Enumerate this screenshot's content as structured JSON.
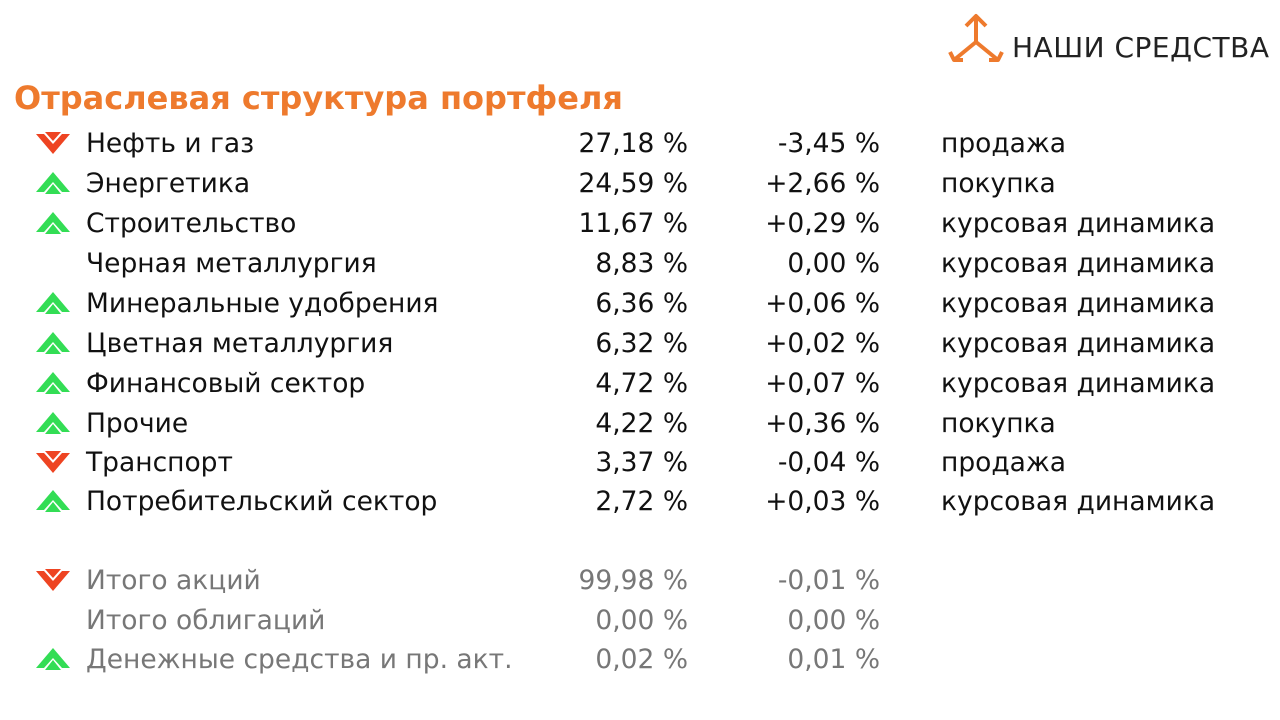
{
  "brand": {
    "name": "НАШИ СРЕДСТВА",
    "accent": "#EE7A2D"
  },
  "title": "Отраслевая структура портфеля",
  "colors": {
    "up": "#33DD55",
    "down": "#EE4422",
    "total_text": "#777777"
  },
  "sectors": [
    {
      "name": "Нефть и газ",
      "share": "27,18 %",
      "change": "-3,45 %",
      "action": "продажа",
      "trend": "down"
    },
    {
      "name": "Энергетика",
      "share": "24,59 %",
      "change": "+2,66 %",
      "action": "покупка",
      "trend": "up"
    },
    {
      "name": "Строительство",
      "share": "11,67 %",
      "change": "+0,29 %",
      "action": "курсовая динамика",
      "trend": "up"
    },
    {
      "name": "Черная металлургия",
      "share": "8,83 %",
      "change": "0,00 %",
      "action": "курсовая динамика",
      "trend": "none"
    },
    {
      "name": "Минеральные удобрения",
      "share": "6,36 %",
      "change": "+0,06 %",
      "action": "курсовая динамика",
      "trend": "up"
    },
    {
      "name": "Цветная металлургия",
      "share": "6,32 %",
      "change": "+0,02 %",
      "action": "курсовая динамика",
      "trend": "up"
    },
    {
      "name": "Финансовый сектор",
      "share": "4,72 %",
      "change": "+0,07 %",
      "action": "курсовая динамика",
      "trend": "up"
    },
    {
      "name": "Прочие",
      "share": "4,22 %",
      "change": "+0,36 %",
      "action": "покупка",
      "trend": "up"
    },
    {
      "name": "Транспорт",
      "share": "3,37 %",
      "change": "-0,04 %",
      "action": "продажа",
      "trend": "down"
    },
    {
      "name": "Потребительский сектор",
      "share": "2,72 %",
      "change": "+0,03 %",
      "action": "курсовая динамика",
      "trend": "up"
    }
  ],
  "totals": [
    {
      "name": "Итого акций",
      "share": "99,98 %",
      "change": "-0,01 %",
      "trend": "down"
    },
    {
      "name": "Итого облигаций",
      "share": "0,00 %",
      "change": "0,00 %",
      "trend": "none"
    },
    {
      "name": "Денежные средства и пр. акт.",
      "share": "0,02 %",
      "change": "0,01 %",
      "trend": "up"
    }
  ]
}
